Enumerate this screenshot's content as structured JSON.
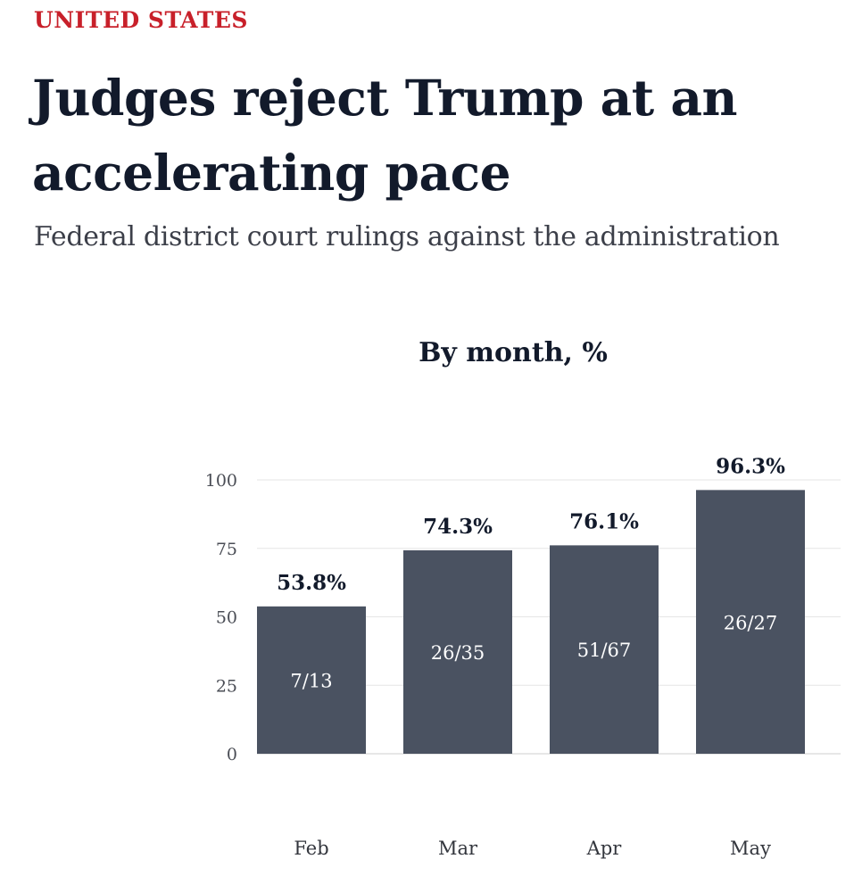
{
  "kicker": "UNITED STATES",
  "headline": "Judges reject Trump at an accelerating pace",
  "subtitle": "Federal district court rulings against the administration",
  "colors": {
    "kicker": "#c8202a",
    "bar": "#4a5261",
    "text": "#121a2b",
    "grid": "#e6e6e6"
  },
  "chart_data": {
    "type": "bar",
    "title": "By month, %",
    "xlabel": "",
    "ylabel": "",
    "categories": [
      "Feb",
      "Mar",
      "Apr",
      "May"
    ],
    "values": [
      53.8,
      74.3,
      76.1,
      96.3
    ],
    "value_labels": [
      "53.8%",
      "74.3%",
      "76.1%",
      "96.3%"
    ],
    "inner_labels": [
      "7/13",
      "26/35",
      "51/67",
      "26/27"
    ],
    "yticks": [
      0,
      25,
      50,
      75,
      100
    ],
    "ylim": [
      0,
      100
    ],
    "grid": true
  }
}
